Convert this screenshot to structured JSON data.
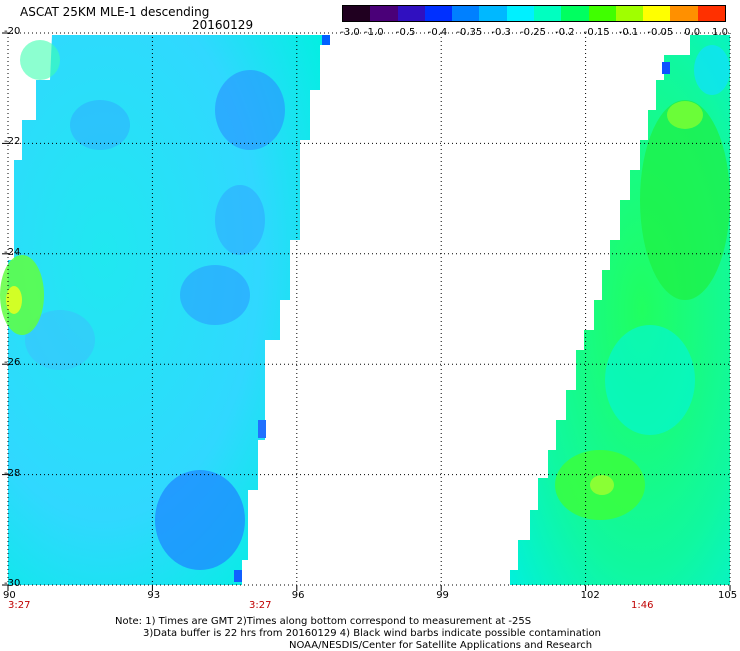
{
  "header": {
    "title": "ASCAT 25KM MLE-1 descending",
    "date": "20160129"
  },
  "colorbar": {
    "colors": [
      "#200020",
      "#4a0078",
      "#3010c0",
      "#0030ff",
      "#0080ff",
      "#00b8ff",
      "#00f0ff",
      "#00ffc0",
      "#00ff60",
      "#40ff00",
      "#a0ff00",
      "#ffff00",
      "#ff9000",
      "#ff3000"
    ],
    "labels": [
      "-3.0",
      "-1.0",
      "-0.5",
      "-0.4",
      "-0.35",
      "-0.3",
      "-0.25",
      "-0.2",
      "-0.15",
      "-0.1",
      "-0.05",
      "0.0",
      "1.0"
    ]
  },
  "axes": {
    "lon_labels": [
      "90",
      "93",
      "96",
      "99",
      "102",
      "105"
    ],
    "lat_labels": [
      "-20",
      "-22",
      "-24",
      "-26",
      "-28",
      "-30"
    ]
  },
  "time_labels": [
    "3:27",
    "3:27",
    "1:46"
  ],
  "notes": {
    "line1": "Note: 1) Times are GMT 2)Times along bottom correspond to measurement at -25S",
    "line2": "3)Data buffer is 22 hrs from 20160129 4) Black wind barbs indicate possible contamination",
    "line3": "NOAA/NESDIS/Center for Satellite Applications and Research"
  }
}
